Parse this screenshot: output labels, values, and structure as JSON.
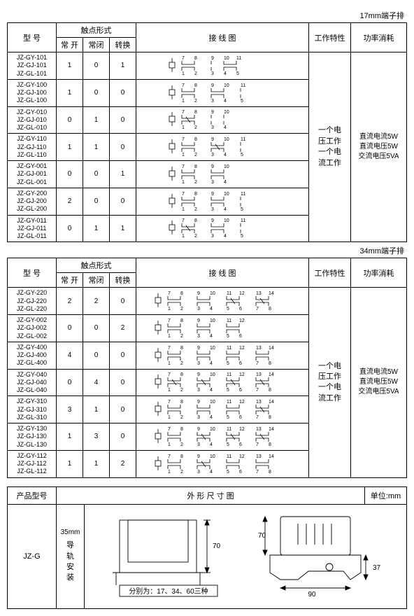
{
  "table1": {
    "caption": "17mm端子排",
    "headers": {
      "model": "型 号",
      "contact": "触点形式",
      "normally_open": "常 开",
      "normally_closed": "常闭",
      "transfer": "转换",
      "wiring": "接 线 图",
      "work_char": "工作特性",
      "power": "功率消耗"
    },
    "rows": [
      {
        "models": [
          "JZ-GY-101",
          "JZ-GJ-101",
          "JZ-GL-101"
        ],
        "no": "1",
        "nc": "0",
        "tr": "1"
      },
      {
        "models": [
          "JZ-GY-100",
          "JZ-GJ-100",
          "JZ-GL-100"
        ],
        "no": "1",
        "nc": "0",
        "tr": "0"
      },
      {
        "models": [
          "JZ-GY-010",
          "JZ-GJ-010",
          "JZ-GL-010"
        ],
        "no": "0",
        "nc": "1",
        "tr": "0"
      },
      {
        "models": [
          "JZ-GY-110",
          "JZ-GJ-110",
          "JZ-GL-110"
        ],
        "no": "1",
        "nc": "1",
        "tr": "0"
      },
      {
        "models": [
          "JZ-GY-001",
          "JZ-GJ-001",
          "JZ-GL-001"
        ],
        "no": "0",
        "nc": "0",
        "tr": "1"
      },
      {
        "models": [
          "JZ-GY-200",
          "JZ-GJ-200",
          "JZ-GL-200"
        ],
        "no": "2",
        "nc": "0",
        "tr": "0"
      },
      {
        "models": [
          "JZ-GY-011",
          "JZ-GJ-011",
          "JZ-GL-011"
        ],
        "no": "0",
        "nc": "1",
        "tr": "1"
      }
    ],
    "work_char_text": [
      "一个电",
      "压工作",
      "",
      "一个电",
      "流工作"
    ],
    "power_text": [
      "直流电流5W",
      "",
      "直流电压5W",
      "",
      "交流电压5VA"
    ]
  },
  "table2": {
    "caption": "34mm端子排",
    "rows": [
      {
        "models": [
          "JZ-GY-220",
          "JZ-GJ-220",
          "JZ-GL-220"
        ],
        "no": "2",
        "nc": "2",
        "tr": "0"
      },
      {
        "models": [
          "JZ-GY-002",
          "JZ-GJ-002",
          "JZ-GL-002"
        ],
        "no": "0",
        "nc": "0",
        "tr": "2"
      },
      {
        "models": [
          "JZ-GY-400",
          "JZ-GJ-400",
          "JZ-GL-400"
        ],
        "no": "4",
        "nc": "0",
        "tr": "0"
      },
      {
        "models": [
          "JZ-GY-040",
          "JZ-GJ-040",
          "JZ-GL-040"
        ],
        "no": "0",
        "nc": "4",
        "tr": "0"
      },
      {
        "models": [
          "JZ-GY-310",
          "JZ-GJ-310",
          "JZ-GL-310"
        ],
        "no": "3",
        "nc": "1",
        "tr": "0"
      },
      {
        "models": [
          "JZ-GY-130",
          "JZ-GJ-130",
          "JZ-GL-130"
        ],
        "no": "1",
        "nc": "3",
        "tr": "0"
      },
      {
        "models": [
          "JZ-GY-112",
          "JZ-GJ-112",
          "JZ-GL-112"
        ],
        "no": "1",
        "nc": "1",
        "tr": "2"
      }
    ]
  },
  "dim_table": {
    "headers": {
      "model": "产品型号",
      "drawing": "外 形 尺 寸 图",
      "unit": "单位:mm"
    },
    "model": "JZ-G",
    "mount_label": "35mm",
    "mount_text": [
      "导",
      "轨",
      "安",
      "装"
    ],
    "height": "70",
    "note": "分别为：17、34、60三种",
    "width": "90",
    "depth": "37",
    "h2": "70"
  },
  "diag_style": {
    "stroke": "#000",
    "stroke_width": 0.8,
    "num_font": "7px"
  }
}
